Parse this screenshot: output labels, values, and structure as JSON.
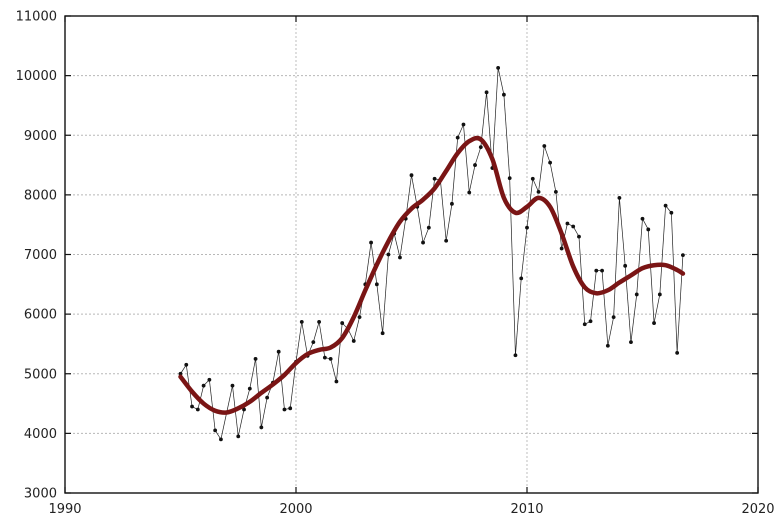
{
  "chart_data": {
    "type": "line",
    "title": "",
    "xlabel": "",
    "ylabel": "",
    "xlim": [
      1990,
      2020
    ],
    "ylim": [
      3000,
      11000
    ],
    "x_ticks": [
      1990,
      2000,
      2010,
      2020
    ],
    "y_ticks": [
      3000,
      4000,
      5000,
      6000,
      7000,
      8000,
      9000,
      10000,
      11000
    ],
    "grid": true,
    "legend": "none",
    "colors": {
      "raw": "#222222",
      "smooth": "#7a1515"
    },
    "series": [
      {
        "style": "thin-line-with-points",
        "x": [
          1995.0,
          1995.25,
          1995.5,
          1995.75,
          1996.0,
          1996.25,
          1996.5,
          1996.75,
          1997.0,
          1997.25,
          1997.5,
          1997.75,
          1998.0,
          1998.25,
          1998.5,
          1998.75,
          1999.0,
          1999.25,
          1999.5,
          1999.75,
          2000.0,
          2000.25,
          2000.5,
          2000.75,
          2001.0,
          2001.25,
          2001.5,
          2001.75,
          2002.0,
          2002.25,
          2002.5,
          2002.75,
          2003.0,
          2003.25,
          2003.5,
          2003.75,
          2004.0,
          2004.25,
          2004.5,
          2004.75,
          2005.0,
          2005.25,
          2005.5,
          2005.75,
          2006.0,
          2006.25,
          2006.5,
          2006.75,
          2007.0,
          2007.25,
          2007.5,
          2007.75,
          2008.0,
          2008.25,
          2008.5,
          2008.75,
          2009.0,
          2009.25,
          2009.5,
          2009.75,
          2010.0,
          2010.25,
          2010.5,
          2010.75,
          2011.0,
          2011.25,
          2011.5,
          2011.75,
          2012.0,
          2012.25,
          2012.5,
          2012.75,
          2013.0,
          2013.25,
          2013.5,
          2013.75,
          2014.0,
          2014.25,
          2014.5,
          2014.75,
          2015.0,
          2015.25,
          2015.5,
          2015.75,
          2016.0,
          2016.25,
          2016.5,
          2016.75
        ],
        "y": [
          5000,
          5150,
          4450,
          4400,
          4800,
          4900,
          4050,
          3900,
          4350,
          4800,
          3950,
          4400,
          4750,
          5250,
          4100,
          4600,
          4850,
          5370,
          4400,
          4420,
          5200,
          5870,
          5300,
          5530,
          5870,
          5270,
          5250,
          4870,
          5850,
          5750,
          5550,
          5950,
          6500,
          7200,
          6500,
          5680,
          7000,
          7350,
          6950,
          7600,
          8330,
          7800,
          7200,
          7450,
          8270,
          8250,
          7230,
          7850,
          8960,
          9180,
          8040,
          8500,
          8800,
          9720,
          8450,
          10130,
          9680,
          8280,
          5310,
          6600,
          7450,
          8270,
          8050,
          8820,
          8540,
          8050,
          7100,
          7520,
          7470,
          7300,
          5830,
          5880,
          6730,
          6730,
          5470,
          5950,
          7950,
          6810,
          5530,
          6330,
          7600,
          7420,
          5850,
          6330,
          7820,
          7700,
          5350,
          6990
        ]
      },
      {
        "style": "smoothed-trend",
        "x": [
          1995.0,
          1995.5,
          1996.0,
          1996.5,
          1997.0,
          1997.5,
          1998.0,
          1998.5,
          1999.0,
          1999.5,
          2000.0,
          2000.5,
          2001.0,
          2001.5,
          2002.0,
          2002.5,
          2003.0,
          2003.5,
          2004.0,
          2004.5,
          2005.0,
          2005.5,
          2006.0,
          2006.5,
          2007.0,
          2007.5,
          2008.0,
          2008.5,
          2009.0,
          2009.5,
          2010.0,
          2010.5,
          2011.0,
          2011.5,
          2012.0,
          2012.5,
          2013.0,
          2013.5,
          2014.0,
          2014.5,
          2015.0,
          2015.5,
          2016.0,
          2016.5,
          2016.75
        ],
        "y": [
          4950,
          4700,
          4500,
          4380,
          4350,
          4420,
          4530,
          4680,
          4820,
          4980,
          5180,
          5330,
          5400,
          5440,
          5600,
          5950,
          6400,
          6830,
          7220,
          7550,
          7770,
          7920,
          8110,
          8400,
          8700,
          8900,
          8930,
          8600,
          7950,
          7700,
          7800,
          7950,
          7800,
          7350,
          6800,
          6450,
          6350,
          6400,
          6530,
          6650,
          6770,
          6820,
          6820,
          6740,
          6680
        ]
      }
    ]
  }
}
